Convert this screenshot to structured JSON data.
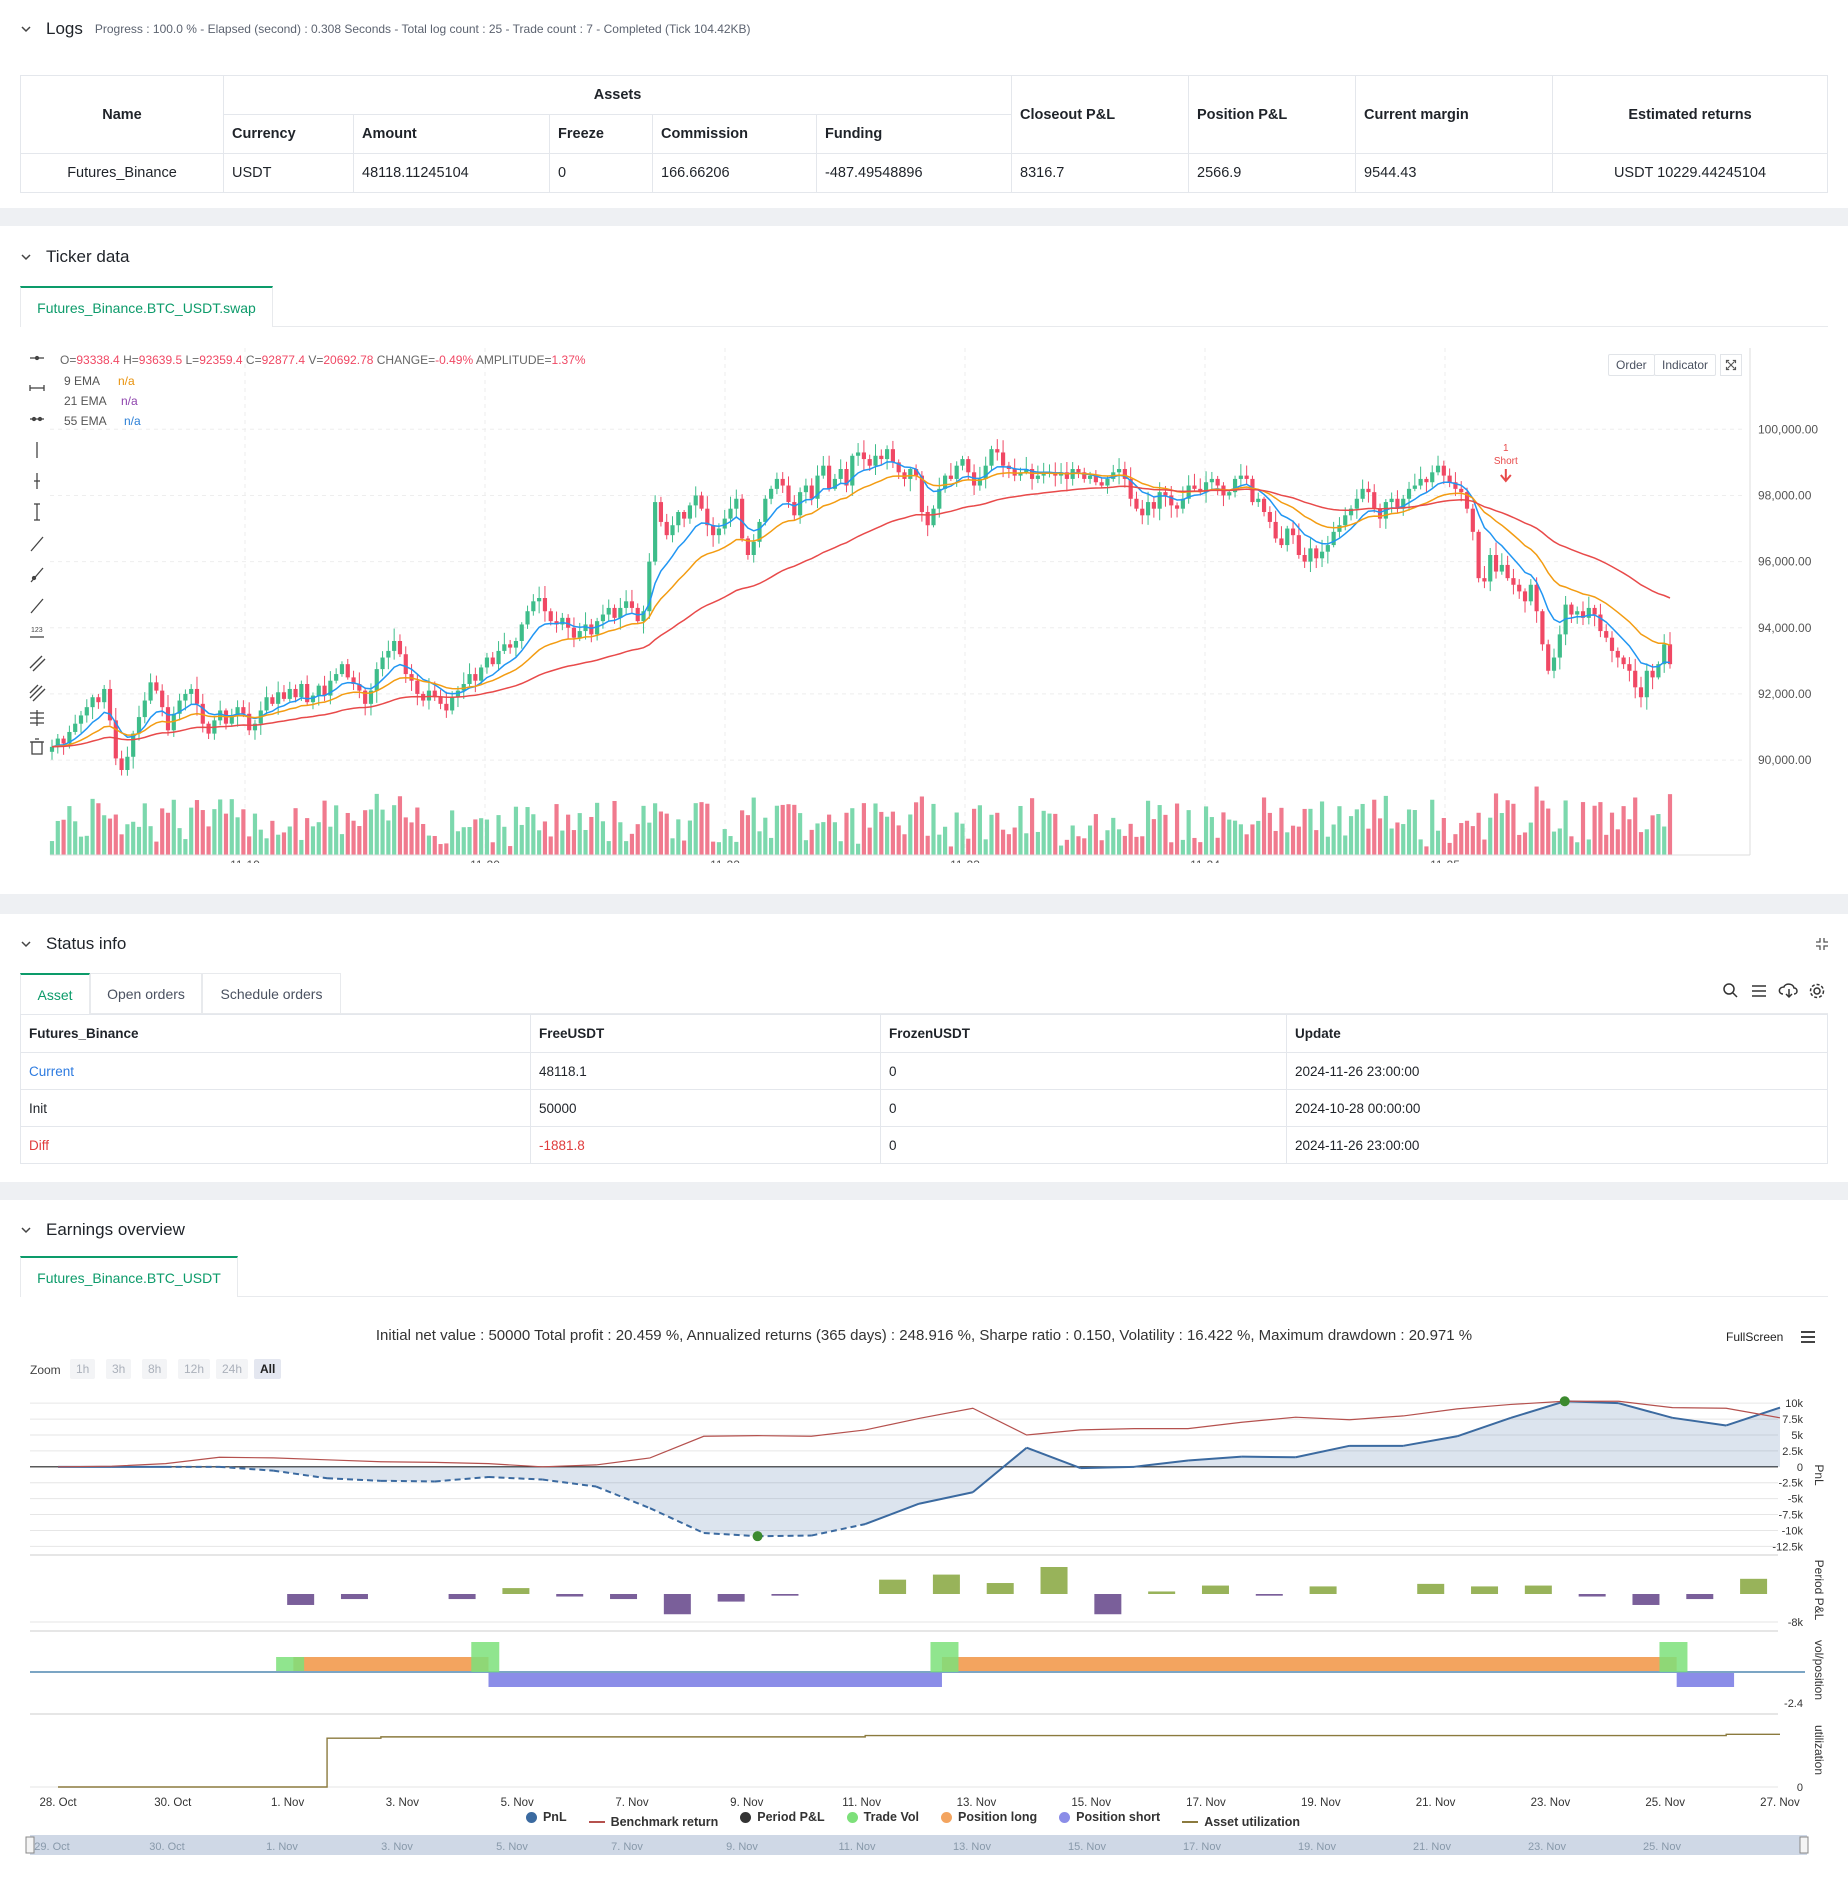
{
  "logs": {
    "title": "Logs",
    "info": "Progress : 100.0 % - Elapsed (second) : 0.308  Seconds - Total log count : 25 - Trade count : 7 - Completed (Tick 104.42KB)",
    "table": {
      "h_name": "Name",
      "h_assets": "Assets",
      "h_closeout": "Closeout P&L",
      "h_position": "Position P&L",
      "h_margin": "Current margin",
      "h_estimated": "Estimated returns",
      "h_currency": "Currency",
      "h_amount": "Amount",
      "h_freeze": "Freeze",
      "h_commission": "Commission",
      "h_funding": "Funding",
      "row": {
        "name": "Futures_Binance",
        "currency": "USDT",
        "amount": "48118.11245104",
        "freeze": "0",
        "commission": "166.66206",
        "funding": "-487.49548896",
        "closeout": "8316.7",
        "position": "2566.9",
        "margin": "9544.43",
        "estimated": "USDT 10229.44245104"
      }
    }
  },
  "ticker": {
    "title": "Ticker data",
    "tab": "Futures_Binance.BTC_USDT.swap",
    "ohlc": {
      "o_label": "O=",
      "o": "93338.4",
      "h_label": "H=",
      "h": "93639.5",
      "l_label": "L=",
      "l": "92359.4",
      "c_label": "C=",
      "c": "92877.4",
      "v_label": "V=",
      "v": "20692.78",
      "change_label": "CHANGE=",
      "change": "-0.49%",
      "amp_label": "AMPLITUDE=",
      "amp": "1.37%"
    },
    "legend": [
      {
        "name": "9 EMA",
        "value": "n/a",
        "color": "#e8920c"
      },
      {
        "name": "21 EMA",
        "value": "n/a",
        "color": "#8e44ad"
      },
      {
        "name": "55 EMA",
        "value": "n/a",
        "color": "#2b7fd6"
      }
    ],
    "buttons": {
      "order": "Order",
      "indicator": "Indicator"
    },
    "marker": {
      "count": "1",
      "label": "Short"
    },
    "colors": {
      "up": "#3ebd8a",
      "down": "#f04864",
      "ema9": "#2196f3",
      "ema21": "#f39c12",
      "ema55": "#e84a4a",
      "volUp": "#7cd8ad",
      "volDown": "#f07a8e"
    },
    "chart_data": {
      "type": "candlestick",
      "y_ticks": [
        "100,000.00",
        "98,000.00",
        "96,000.00",
        "94,000.00",
        "92,000.00",
        "90,000.00"
      ],
      "y_tick_values": [
        100000,
        98000,
        96000,
        94000,
        92000,
        90000
      ],
      "ylim": [
        88400,
        101400
      ],
      "x_labels": [
        "11-19",
        "11-20",
        "11-22",
        "11-23",
        "11-24",
        "11-25"
      ],
      "closes": [
        90400,
        90650,
        90500,
        90850,
        91100,
        91350,
        91600,
        91900,
        91750,
        92150,
        91200,
        90050,
        89700,
        90100,
        90800,
        91300,
        91800,
        92350,
        92100,
        91600,
        90900,
        91400,
        91800,
        92000,
        92150,
        91700,
        91100,
        90800,
        91200,
        91500,
        91100,
        91350,
        91600,
        91400,
        90900,
        91100,
        91500,
        91900,
        91700,
        92050,
        91850,
        92150,
        91900,
        92300,
        91750,
        91950,
        92250,
        91950,
        92400,
        92600,
        92900,
        92500,
        92300,
        92100,
        91700,
        92100,
        92750,
        93100,
        93300,
        93600,
        93200,
        92600,
        92400,
        92000,
        91800,
        92100,
        91900,
        91700,
        91500,
        91900,
        92100,
        92300,
        92600,
        92400,
        92800,
        93100,
        92900,
        93300,
        93500,
        93400,
        93600,
        94100,
        94500,
        94800,
        94900,
        94500,
        94200,
        94100,
        94300,
        94000,
        93700,
        93900,
        94100,
        93800,
        94200,
        94400,
        94600,
        94300,
        94600,
        94800,
        94600,
        94200,
        94500,
        96000,
        97800,
        97200,
        96800,
        97100,
        97500,
        97300,
        97700,
        98000,
        97600,
        97100,
        96800,
        97000,
        97300,
        97600,
        97900,
        96700,
        96200,
        96600,
        97200,
        97900,
        98200,
        98500,
        98300,
        97800,
        97400,
        98100,
        98300,
        97900,
        98600,
        98900,
        98200,
        98500,
        98800,
        98300,
        99200,
        99300,
        99100,
        98900,
        99200,
        99100,
        99400,
        99000,
        98700,
        98500,
        98800,
        98600,
        97500,
        97100,
        97600,
        98200,
        98600,
        98500,
        98900,
        99100,
        98700,
        98300,
        98500,
        98900,
        99400,
        99300,
        98900,
        98800,
        98600,
        98700,
        98800,
        98500,
        98600,
        98700,
        98700,
        98600,
        98700,
        98500,
        98800,
        98700,
        98500,
        98600,
        98400,
        98300,
        98500,
        98700,
        98800,
        98500,
        97900,
        97600,
        97400,
        97800,
        97600,
        98100,
        98000,
        97700,
        97600,
        97900,
        98300,
        98200,
        98100,
        98400,
        98500,
        98300,
        98000,
        98100,
        98500,
        98600,
        98500,
        97800,
        97900,
        97500,
        97200,
        96700,
        96500,
        97000,
        96800,
        96200,
        96000,
        96400,
        96100,
        96300,
        96500,
        96900,
        97100,
        97400,
        97600,
        97900,
        98200,
        98100,
        97600,
        97300,
        97800,
        97900,
        97600,
        97900,
        98200,
        98300,
        98500,
        98400,
        98700,
        98900,
        98600,
        98400,
        98200,
        98100,
        97600,
        96900,
        95500,
        95400,
        96200,
        95700,
        95900,
        95500,
        95300,
        95100,
        94800,
        95300,
        94500,
        93500,
        92700,
        93100,
        93800,
        94700,
        94400,
        94500,
        94300,
        94600,
        94400,
        93900,
        93700,
        93300,
        93100,
        92900,
        92700,
        92200,
        91900,
        92700,
        92500,
        92900,
        93500,
        92900
      ],
      "short_marker_index": 250
    }
  },
  "status": {
    "title": "Status info",
    "tabs": [
      "Asset",
      "Open orders",
      "Schedule orders"
    ],
    "headers": [
      "Futures_Binance",
      "FreeUSDT",
      "FrozenUSDT",
      "Update"
    ],
    "rows": [
      {
        "label": "Current",
        "free": "48118.1",
        "frozen": "0",
        "update": "2024-11-26 23:00:00"
      },
      {
        "label": "Init",
        "free": "50000",
        "frozen": "0",
        "update": "2024-10-28 00:00:00"
      },
      {
        "label": "Diff",
        "free": "-1881.8",
        "frozen": "0",
        "update": "2024-11-26 23:00:00"
      }
    ]
  },
  "earnings": {
    "title": "Earnings overview",
    "tab": "Futures_Binance.BTC_USDT",
    "summary": "Initial net value : 50000 Total profit : 20.459 %, Annualized returns (365 days) : 248.916 %, Sharpe ratio : 0.150, Volatility : 16.422 %, Maximum drawdown : 20.971 %",
    "fullscreen": "FullScreen",
    "zoom_label": "Zoom",
    "zoom_options": [
      "1h",
      "3h",
      "8h",
      "12h",
      "24h",
      "All"
    ],
    "pnl_ticks": [
      "10k",
      "7.5k",
      "5k",
      "2.5k",
      "0",
      "-2.5k",
      "-5k",
      "-7.5k",
      "-10k",
      "-12.5k"
    ],
    "period_tick": "-8k",
    "vol_tick": "-2.4",
    "util_tick": "0",
    "axis_titles": [
      "PnL",
      "Period P&L",
      "vol/position",
      "utilization"
    ],
    "x_labels": [
      "28. Oct",
      "30. Oct",
      "1. Nov",
      "3. Nov",
      "5. Nov",
      "7. Nov",
      "9. Nov",
      "11. Nov",
      "13. Nov",
      "15. Nov",
      "17. Nov",
      "19. Nov",
      "21. Nov",
      "23. Nov",
      "25. Nov",
      "27. Nov"
    ],
    "navigator_labels": [
      "29. Oct",
      "30. Oct",
      "1. Nov",
      "3. Nov",
      "5. Nov",
      "7. Nov",
      "9. Nov",
      "11. Nov",
      "13. Nov",
      "15. Nov",
      "17. Nov",
      "19. Nov",
      "21. Nov",
      "23. Nov",
      "25. Nov"
    ],
    "legend": [
      {
        "name": "PnL",
        "color": "#3b6aa0",
        "kind": "dot"
      },
      {
        "name": "Benchmark return",
        "color": "#b5514e",
        "kind": "line"
      },
      {
        "name": "Period P&L",
        "color": "#333333",
        "kind": "dot"
      },
      {
        "name": "Trade Vol",
        "color": "#7de07a",
        "kind": "dot"
      },
      {
        "name": "Position long",
        "color": "#f3a45f",
        "kind": "dot"
      },
      {
        "name": "Position short",
        "color": "#8b8de8",
        "kind": "dot"
      },
      {
        "name": "Asset utilization",
        "color": "#8b7a3e",
        "kind": "line"
      }
    ],
    "chart_data": {
      "type": "line",
      "pnl": [
        0,
        0,
        0,
        0,
        -600,
        -1800,
        -2200,
        -2300,
        -1600,
        -2000,
        -3100,
        -6500,
        -10400,
        -10900,
        -10800,
        -9000,
        -5800,
        -4000,
        3000,
        -200,
        0,
        1000,
        1600,
        1500,
        3300,
        3300,
        4800,
        7700,
        10300,
        10000,
        7700,
        6500,
        9300
      ],
      "benchmark": [
        0,
        100,
        500,
        1500,
        1400,
        1100,
        800,
        700,
        500,
        0,
        300,
        1400,
        4800,
        4900,
        4800,
        5800,
        7600,
        9200,
        5000,
        5800,
        6000,
        6000,
        7000,
        7800,
        7400,
        8000,
        9100,
        9800,
        10300,
        10300,
        9300,
        9200,
        7700
      ],
      "period_pnl": [
        0,
        0,
        0,
        0,
        -1300,
        -600,
        0,
        -600,
        700,
        -300,
        -600,
        -2400,
        -900,
        -200,
        0,
        1700,
        2300,
        1300,
        3200,
        -2400,
        300,
        1000,
        -200,
        900,
        0,
        1200,
        900,
        1000,
        -300,
        -1300,
        -600,
        1800
      ],
      "asset_utilization": [
        0,
        0,
        0,
        0,
        0,
        0.38,
        0.39,
        0.39,
        0.39,
        0.39,
        0.39,
        0.39,
        0.39,
        0.39,
        0.39,
        0.4,
        0.4,
        0.4,
        0.4,
        0.4,
        0.4,
        0.4,
        0.4,
        0.4,
        0.4,
        0.4,
        0.4,
        0.4,
        0.4,
        0.4,
        0.4,
        0.41,
        0.41
      ]
    }
  }
}
